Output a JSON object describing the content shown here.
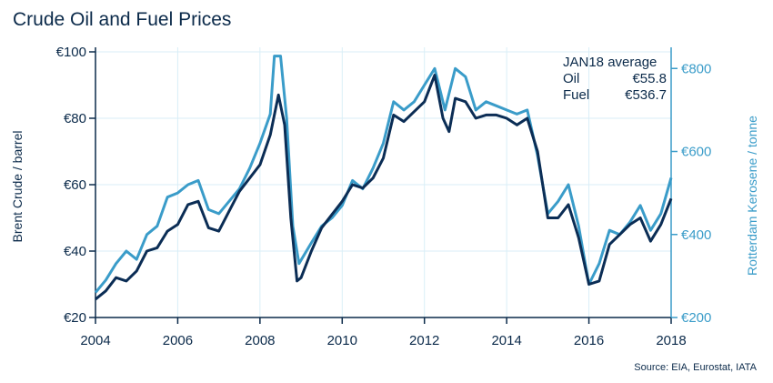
{
  "title": "Crude Oil and Fuel Prices",
  "source": "Source: EIA, Eurostat, IATA",
  "colors": {
    "brent": "#0b2d55",
    "kerosene": "#3a9cc9",
    "grid": "#d9eef7",
    "axis": "#0b2a4a"
  },
  "chart_data": {
    "type": "line",
    "title": "Crude Oil and Fuel Prices",
    "ylabel_left": "Brent Crude / barrel",
    "ylabel_right": "Rotterdam Kerosene / tonne",
    "xlim": [
      2004,
      2018
    ],
    "ylim_left": [
      20,
      100
    ],
    "ylim_right": [
      200,
      840
    ],
    "x_ticks": [
      "2004",
      "2006",
      "2008",
      "2010",
      "2012",
      "2014",
      "2016",
      "2018"
    ],
    "y_ticks_left": [
      "€20",
      "€40",
      "€60",
      "€80",
      "€100"
    ],
    "y_ticks_right": [
      "€200",
      "€400",
      "€600",
      "€800"
    ],
    "grid": true,
    "annotation": {
      "heading": "JAN18 average",
      "rows": [
        {
          "label": "Oil",
          "value": "€55.8"
        },
        {
          "label": "Fuel",
          "value": "€536.7"
        }
      ]
    },
    "series": [
      {
        "name": "Brent Crude",
        "axis": "left",
        "points": [
          [
            2004.0,
            25.5
          ],
          [
            2004.25,
            28
          ],
          [
            2004.5,
            32
          ],
          [
            2004.75,
            31
          ],
          [
            2005.0,
            34
          ],
          [
            2005.25,
            40
          ],
          [
            2005.5,
            41
          ],
          [
            2005.75,
            46
          ],
          [
            2006.0,
            48
          ],
          [
            2006.25,
            54
          ],
          [
            2006.5,
            55
          ],
          [
            2006.75,
            47
          ],
          [
            2007.0,
            46
          ],
          [
            2007.25,
            52
          ],
          [
            2007.5,
            58
          ],
          [
            2007.75,
            62
          ],
          [
            2008.0,
            66
          ],
          [
            2008.25,
            75
          ],
          [
            2008.45,
            87
          ],
          [
            2008.6,
            78
          ],
          [
            2008.75,
            50
          ],
          [
            2008.9,
            31
          ],
          [
            2009.0,
            32
          ],
          [
            2009.25,
            40
          ],
          [
            2009.5,
            47
          ],
          [
            2009.75,
            51
          ],
          [
            2010.0,
            55
          ],
          [
            2010.25,
            60
          ],
          [
            2010.5,
            59
          ],
          [
            2010.75,
            62
          ],
          [
            2011.0,
            68
          ],
          [
            2011.25,
            81
          ],
          [
            2011.5,
            79
          ],
          [
            2011.75,
            82
          ],
          [
            2012.0,
            85
          ],
          [
            2012.25,
            93
          ],
          [
            2012.45,
            80
          ],
          [
            2012.6,
            76
          ],
          [
            2012.75,
            86
          ],
          [
            2013.0,
            85
          ],
          [
            2013.25,
            80
          ],
          [
            2013.5,
            81
          ],
          [
            2013.75,
            81
          ],
          [
            2014.0,
            80
          ],
          [
            2014.25,
            78
          ],
          [
            2014.5,
            80
          ],
          [
            2014.75,
            70
          ],
          [
            2015.0,
            50
          ],
          [
            2015.25,
            50
          ],
          [
            2015.5,
            54
          ],
          [
            2015.75,
            44
          ],
          [
            2016.0,
            30
          ],
          [
            2016.25,
            31
          ],
          [
            2016.5,
            42
          ],
          [
            2016.75,
            45
          ],
          [
            2017.0,
            48
          ],
          [
            2017.25,
            50
          ],
          [
            2017.5,
            43
          ],
          [
            2017.75,
            48
          ],
          [
            2018.0,
            55.8
          ]
        ]
      },
      {
        "name": "Rotterdam Kerosene",
        "axis": "right",
        "points": [
          [
            2004.0,
            260
          ],
          [
            2004.25,
            290
          ],
          [
            2004.5,
            330
          ],
          [
            2004.75,
            360
          ],
          [
            2005.0,
            340
          ],
          [
            2005.25,
            400
          ],
          [
            2005.5,
            420
          ],
          [
            2005.75,
            490
          ],
          [
            2006.0,
            500
          ],
          [
            2006.25,
            520
          ],
          [
            2006.5,
            530
          ],
          [
            2006.75,
            460
          ],
          [
            2007.0,
            450
          ],
          [
            2007.25,
            480
          ],
          [
            2007.5,
            510
          ],
          [
            2007.75,
            560
          ],
          [
            2008.0,
            620
          ],
          [
            2008.25,
            690
          ],
          [
            2008.35,
            830
          ],
          [
            2008.5,
            830
          ],
          [
            2008.65,
            680
          ],
          [
            2008.8,
            420
          ],
          [
            2008.95,
            330
          ],
          [
            2009.25,
            380
          ],
          [
            2009.5,
            420
          ],
          [
            2009.75,
            440
          ],
          [
            2010.0,
            470
          ],
          [
            2010.25,
            530
          ],
          [
            2010.5,
            510
          ],
          [
            2010.75,
            560
          ],
          [
            2011.0,
            620
          ],
          [
            2011.25,
            720
          ],
          [
            2011.5,
            700
          ],
          [
            2011.75,
            720
          ],
          [
            2012.0,
            760
          ],
          [
            2012.25,
            800
          ],
          [
            2012.5,
            700
          ],
          [
            2012.75,
            800
          ],
          [
            2013.0,
            780
          ],
          [
            2013.25,
            700
          ],
          [
            2013.5,
            720
          ],
          [
            2013.75,
            710
          ],
          [
            2014.0,
            700
          ],
          [
            2014.25,
            690
          ],
          [
            2014.5,
            700
          ],
          [
            2014.75,
            590
          ],
          [
            2015.0,
            450
          ],
          [
            2015.25,
            480
          ],
          [
            2015.5,
            520
          ],
          [
            2015.75,
            420
          ],
          [
            2016.0,
            280
          ],
          [
            2016.25,
            330
          ],
          [
            2016.5,
            410
          ],
          [
            2016.75,
            400
          ],
          [
            2017.0,
            430
          ],
          [
            2017.25,
            470
          ],
          [
            2017.5,
            410
          ],
          [
            2017.75,
            450
          ],
          [
            2018.0,
            536.7
          ]
        ]
      }
    ]
  }
}
